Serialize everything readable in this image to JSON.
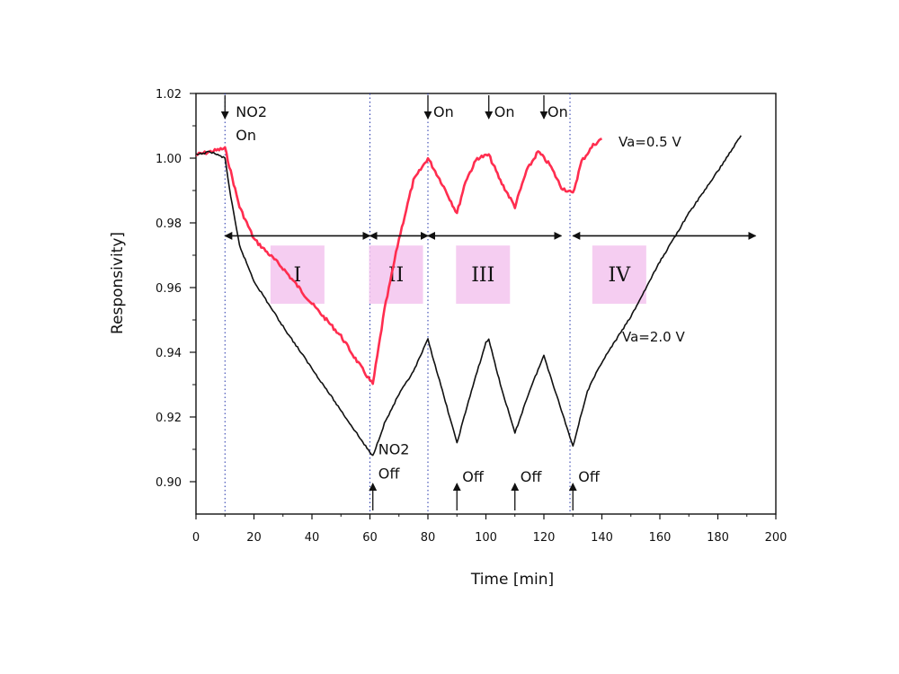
{
  "chart_data": {
    "type": "line",
    "title": "",
    "xlabel": "Time [min]",
    "ylabel": "Responsivity]",
    "xlim": [
      0,
      200
    ],
    "ylim": [
      0.89,
      1.02
    ],
    "x_ticks": [
      0,
      20,
      40,
      60,
      80,
      100,
      120,
      140,
      160,
      180,
      200
    ],
    "y_ticks": [
      0.9,
      0.92,
      0.94,
      0.96,
      0.98,
      1.0,
      1.02
    ],
    "y_tick_labels": [
      "0.90",
      "0.92",
      "0.94",
      "0.96",
      "0.98",
      "1.00",
      "1.02"
    ],
    "grid": false,
    "series": [
      {
        "name": "Va=0.5 V",
        "color": "#ff2d4f",
        "points": [
          [
            0,
            1.001
          ],
          [
            5,
            1.002
          ],
          [
            10,
            1.003
          ],
          [
            15,
            0.985
          ],
          [
            20,
            0.975
          ],
          [
            30,
            0.966
          ],
          [
            40,
            0.955
          ],
          [
            50,
            0.945
          ],
          [
            55,
            0.938
          ],
          [
            61,
            0.93
          ],
          [
            65,
            0.953
          ],
          [
            70,
            0.975
          ],
          [
            75,
            0.993
          ],
          [
            80,
            1.0
          ],
          [
            85,
            0.992
          ],
          [
            90,
            0.983
          ],
          [
            93,
            0.993
          ],
          [
            97,
            1.0
          ],
          [
            101,
            1.001
          ],
          [
            105,
            0.993
          ],
          [
            110,
            0.985
          ],
          [
            114,
            0.996
          ],
          [
            118,
            1.002
          ],
          [
            122,
            0.998
          ],
          [
            126,
            0.991
          ],
          [
            130,
            0.989
          ],
          [
            133,
            0.999
          ],
          [
            137,
            1.004
          ],
          [
            140,
            1.006
          ]
        ]
      },
      {
        "name": "Va=2.0 V",
        "color": "#111111",
        "points": [
          [
            0,
            1.001
          ],
          [
            5,
            1.002
          ],
          [
            10,
            1.0
          ],
          [
            12,
            0.988
          ],
          [
            15,
            0.973
          ],
          [
            20,
            0.962
          ],
          [
            30,
            0.948
          ],
          [
            40,
            0.935
          ],
          [
            50,
            0.922
          ],
          [
            60,
            0.909
          ],
          [
            61,
            0.908
          ],
          [
            65,
            0.918
          ],
          [
            70,
            0.927
          ],
          [
            75,
            0.934
          ],
          [
            80,
            0.944
          ],
          [
            85,
            0.928
          ],
          [
            90,
            0.912
          ],
          [
            95,
            0.928
          ],
          [
            100,
            0.943
          ],
          [
            101,
            0.944
          ],
          [
            105,
            0.93
          ],
          [
            110,
            0.915
          ],
          [
            115,
            0.928
          ],
          [
            120,
            0.939
          ],
          [
            125,
            0.925
          ],
          [
            130,
            0.911
          ],
          [
            135,
            0.928
          ],
          [
            140,
            0.937
          ],
          [
            150,
            0.951
          ],
          [
            160,
            0.968
          ],
          [
            170,
            0.983
          ],
          [
            180,
            0.996
          ],
          [
            188,
            1.007
          ]
        ]
      }
    ],
    "legend": "inline-labels",
    "annotations": {
      "on_events": [
        {
          "x": 10,
          "label": "NO2\nOn"
        },
        {
          "x": 80,
          "label": "On"
        },
        {
          "x": 101,
          "label": "On"
        },
        {
          "x": 120,
          "label": "On"
        }
      ],
      "off_events": [
        {
          "x": 61,
          "label": "NO2\nOff"
        },
        {
          "x": 90,
          "label": "Off"
        },
        {
          "x": 110,
          "label": "Off"
        },
        {
          "x": 130,
          "label": "Off"
        }
      ],
      "vertical_lines_x": [
        10,
        60,
        80,
        129
      ],
      "regions": [
        {
          "label": "I",
          "x_start": 10,
          "x_end": 60,
          "y": 0.976
        },
        {
          "label": "II",
          "x_start": 60,
          "x_end": 80,
          "y": 0.976
        },
        {
          "label": "III",
          "x_start": 80,
          "x_end": 126,
          "y": 0.976
        },
        {
          "label": "IV",
          "x_start": 130,
          "x_end": 193,
          "y": 0.976
        }
      ],
      "series_labels": [
        "Va=0.5 V",
        "Va=2.0 V"
      ]
    }
  }
}
